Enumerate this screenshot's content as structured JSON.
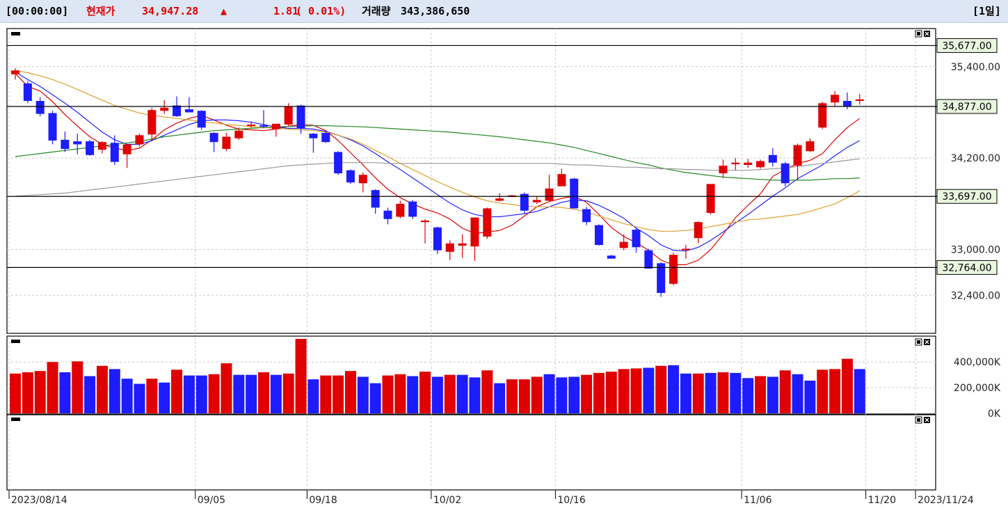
{
  "header": {
    "time": "[00:00:00]",
    "price_label": "현재가",
    "price": "34,947.28",
    "direction_symbol": "▲",
    "change": "1.81",
    "change_pct": "( 0.01%)",
    "volume_label": "거래량",
    "volume": "343,386,650",
    "period": "[1일]",
    "colors": {
      "up": "#e00000",
      "down": "#1c1cff",
      "text": "#000000"
    }
  },
  "panels": {
    "price": {
      "buttons": [
        "maximize-icon",
        "close-icon"
      ]
    },
    "volume": {
      "buttons": [
        "maximize-icon",
        "close-icon"
      ]
    },
    "empty": {
      "buttons": [
        "maximize-icon",
        "close-icon"
      ]
    }
  },
  "chart_data": {
    "type": "candlestick",
    "price_axis": {
      "ticks": [
        "35,400.00",
        "34,200.00",
        "33,000.00",
        "32,400.00"
      ],
      "tick_values": [
        35400,
        34200,
        33000,
        32400
      ],
      "ylim": [
        31900,
        35900
      ]
    },
    "levels": [
      {
        "label": "35,677.00",
        "value": 35677
      },
      {
        "label": "34,877.00",
        "value": 34877
      },
      {
        "label": "33,697.00",
        "value": 33697
      },
      {
        "label": "32,764.00",
        "value": 32764
      }
    ],
    "volume_axis": {
      "ticks": [
        "400,000K",
        "200,000K",
        "0K"
      ],
      "tick_values": [
        400000,
        200000,
        0
      ],
      "ylim": [
        0,
        580000
      ]
    },
    "date_ticks": [
      {
        "label": "2023/08/14",
        "index": 0
      },
      {
        "label": "09/05",
        "index": 15
      },
      {
        "label": "09/18",
        "index": 24
      },
      {
        "label": "10/02",
        "index": 34
      },
      {
        "label": "10/16",
        "index": 44
      },
      {
        "label": "11/06",
        "index": 59
      },
      {
        "label": "11/20",
        "index": 69
      },
      {
        "label": "2023/11/24",
        "index": 73
      }
    ],
    "candles": [
      [
        35300,
        35380,
        35230,
        35350
      ],
      [
        35180,
        35210,
        34920,
        34950
      ],
      [
        34950,
        35000,
        34750,
        34780
      ],
      [
        34790,
        34820,
        34380,
        34430
      ],
      [
        34440,
        34550,
        34280,
        34320
      ],
      [
        34420,
        34520,
        34250,
        34380
      ],
      [
        34420,
        34440,
        34230,
        34240
      ],
      [
        34310,
        34420,
        34260,
        34410
      ],
      [
        34400,
        34500,
        34110,
        34150
      ],
      [
        34250,
        34370,
        34070,
        34380
      ],
      [
        34380,
        34520,
        34350,
        34500
      ],
      [
        34510,
        34860,
        34430,
        34830
      ],
      [
        34820,
        34960,
        34780,
        34860
      ],
      [
        34890,
        35010,
        34740,
        34750
      ],
      [
        34840,
        35000,
        34800,
        34800
      ],
      [
        34820,
        34830,
        34570,
        34600
      ],
      [
        34530,
        34540,
        34280,
        34410
      ],
      [
        34320,
        34530,
        34290,
        34480
      ],
      [
        34460,
        34600,
        34440,
        34560
      ],
      [
        34620,
        34680,
        34600,
        34640
      ],
      [
        34630,
        34830,
        34590,
        34620
      ],
      [
        34580,
        34620,
        34480,
        34650
      ],
      [
        34640,
        34920,
        34620,
        34880
      ],
      [
        34890,
        34900,
        34520,
        34590
      ],
      [
        34520,
        34530,
        34270,
        34460
      ],
      [
        34530,
        34550,
        34400,
        34410
      ],
      [
        34280,
        34290,
        33980,
        34000
      ],
      [
        34040,
        34050,
        33860,
        33880
      ],
      [
        33870,
        34010,
        33750,
        33980
      ],
      [
        33780,
        33790,
        33470,
        33550
      ],
      [
        33510,
        33550,
        33330,
        33400
      ],
      [
        33430,
        33640,
        33410,
        33600
      ],
      [
        33630,
        33650,
        33400,
        33430
      ],
      [
        33360,
        33400,
        33080,
        33380
      ],
      [
        33290,
        33300,
        32940,
        32990
      ],
      [
        32970,
        33120,
        32860,
        33080
      ],
      [
        33050,
        33200,
        32890,
        33080
      ],
      [
        33040,
        33410,
        32850,
        33420
      ],
      [
        33170,
        33550,
        33140,
        33540
      ],
      [
        33640,
        33740,
        33630,
        33670
      ],
      [
        33690,
        33720,
        33690,
        33710
      ],
      [
        33730,
        33750,
        33470,
        33510
      ],
      [
        33620,
        33690,
        33600,
        33650
      ],
      [
        33640,
        33980,
        33630,
        33800
      ],
      [
        33830,
        34060,
        33830,
        33990
      ],
      [
        33930,
        33940,
        33540,
        33540
      ],
      [
        33530,
        33560,
        33320,
        33360
      ],
      [
        33320,
        33330,
        33050,
        33060
      ],
      [
        32920,
        32930,
        32880,
        32880
      ],
      [
        33020,
        33200,
        32990,
        33100
      ],
      [
        33260,
        33290,
        32960,
        33030
      ],
      [
        32990,
        33010,
        32750,
        32750
      ],
      [
        32820,
        32830,
        32380,
        32430
      ],
      [
        32550,
        32960,
        32530,
        32930
      ],
      [
        33000,
        33060,
        32880,
        33010
      ],
      [
        33150,
        33370,
        33080,
        33360
      ],
      [
        33480,
        33850,
        33460,
        33860
      ],
      [
        34000,
        34180,
        33940,
        34100
      ],
      [
        34120,
        34200,
        34040,
        34140
      ],
      [
        34110,
        34190,
        34070,
        34140
      ],
      [
        34080,
        34180,
        34060,
        34160
      ],
      [
        34240,
        34330,
        34090,
        34140
      ],
      [
        34130,
        34150,
        33830,
        33870
      ],
      [
        34100,
        34390,
        33910,
        34370
      ],
      [
        34290,
        34460,
        34280,
        34420
      ],
      [
        34600,
        34940,
        34580,
        34920
      ],
      [
        34930,
        35080,
        34880,
        35030
      ],
      [
        34950,
        35060,
        34840,
        34880
      ],
      [
        34950,
        35040,
        34900,
        34970
      ]
    ],
    "moving_averages": [
      {
        "name": "MA5",
        "color": "#e00000",
        "values": [
          35310,
          35140,
          35080,
          34940,
          34770,
          34620,
          34480,
          34380,
          34330,
          34300,
          34330,
          34440,
          34570,
          34660,
          34720,
          34760,
          34700,
          34630,
          34580,
          34570,
          34560,
          34580,
          34620,
          34640,
          34630,
          34560,
          34430,
          34270,
          34110,
          33940,
          33790,
          33680,
          33600,
          33530,
          33480,
          33400,
          33280,
          33210,
          33230,
          33250,
          33320,
          33440,
          33560,
          33630,
          33670,
          33700,
          33620,
          33460,
          33290,
          33170,
          33090,
          32990,
          32860,
          32800,
          32800,
          32860,
          33000,
          33200,
          33420,
          33580,
          33730,
          33960,
          34050,
          34130,
          34170,
          34260,
          34440,
          34600,
          34720
        ]
      },
      {
        "name": "MA10",
        "color": "#2222ff",
        "values": [
          35330,
          35230,
          35140,
          35030,
          34920,
          34800,
          34670,
          34540,
          34440,
          34380,
          34380,
          34430,
          34500,
          34570,
          34640,
          34690,
          34700,
          34700,
          34690,
          34670,
          34640,
          34610,
          34590,
          34590,
          34580,
          34550,
          34500,
          34440,
          34360,
          34260,
          34150,
          34050,
          33940,
          33830,
          33720,
          33610,
          33520,
          33460,
          33430,
          33430,
          33450,
          33470,
          33500,
          33560,
          33620,
          33650,
          33640,
          33580,
          33500,
          33410,
          33280,
          33180,
          33060,
          32990,
          32980,
          33030,
          33120,
          33230,
          33350,
          33460,
          33580,
          33700,
          33810,
          33930,
          34020,
          34110,
          34230,
          34340,
          34430
        ]
      },
      {
        "name": "MA20",
        "color": "#e0a030",
        "values": [
          35350,
          35320,
          35280,
          35230,
          35170,
          35100,
          35030,
          34960,
          34890,
          34840,
          34790,
          34760,
          34740,
          34720,
          34700,
          34680,
          34660,
          34640,
          34630,
          34610,
          34600,
          34590,
          34580,
          34570,
          34560,
          34540,
          34500,
          34450,
          34380,
          34300,
          34220,
          34130,
          34050,
          33970,
          33890,
          33820,
          33750,
          33690,
          33640,
          33610,
          33590,
          33570,
          33560,
          33560,
          33550,
          33530,
          33490,
          33440,
          33390,
          33340,
          33300,
          33260,
          33240,
          33240,
          33250,
          33270,
          33300,
          33330,
          33360,
          33390,
          33400,
          33420,
          33440,
          33460,
          33500,
          33550,
          33600,
          33680,
          33770
        ]
      },
      {
        "name": "MA60",
        "color": "#228822",
        "values": [
          34220,
          34240,
          34260,
          34280,
          34300,
          34320,
          34340,
          34360,
          34380,
          34400,
          34420,
          34450,
          34480,
          34500,
          34520,
          34540,
          34560,
          34570,
          34580,
          34590,
          34600,
          34610,
          34615,
          34620,
          34625,
          34625,
          34620,
          34615,
          34610,
          34600,
          34590,
          34580,
          34570,
          34560,
          34550,
          34540,
          34525,
          34510,
          34495,
          34480,
          34460,
          34440,
          34420,
          34400,
          34370,
          34340,
          34300,
          34260,
          34220,
          34180,
          34140,
          34110,
          34070,
          34040,
          34010,
          33990,
          33970,
          33950,
          33940,
          33930,
          33920,
          33910,
          33910,
          33910,
          33910,
          33920,
          33930,
          33930,
          33940
        ]
      },
      {
        "name": "MA120",
        "color": "#999999",
        "values": [
          33700,
          33710,
          33720,
          33730,
          33740,
          33760,
          33780,
          33800,
          33820,
          33840,
          33860,
          33880,
          33900,
          33920,
          33940,
          33960,
          33980,
          34000,
          34020,
          34040,
          34060,
          34080,
          34100,
          34110,
          34120,
          34130,
          34140,
          34140,
          34140,
          34140,
          34130,
          34130,
          34130,
          34130,
          34130,
          34130,
          34130,
          34130,
          34130,
          34130,
          34130,
          34130,
          34130,
          34130,
          34120,
          34110,
          34110,
          34100,
          34090,
          34080,
          34080,
          34070,
          34060,
          34060,
          34050,
          34050,
          34040,
          34040,
          34040,
          34040,
          34050,
          34060,
          34070,
          34090,
          34110,
          34130,
          34150,
          34170,
          34190
        ]
      }
    ],
    "volumes": [
      [
        310000,
        "up"
      ],
      [
        320000,
        "up"
      ],
      [
        330000,
        "up"
      ],
      [
        400000,
        "up"
      ],
      [
        320000,
        "down"
      ],
      [
        405000,
        "up"
      ],
      [
        290000,
        "down"
      ],
      [
        370000,
        "up"
      ],
      [
        345000,
        "down"
      ],
      [
        270000,
        "down"
      ],
      [
        230000,
        "down"
      ],
      [
        270000,
        "up"
      ],
      [
        240000,
        "down"
      ],
      [
        340000,
        "up"
      ],
      [
        295000,
        "down"
      ],
      [
        295000,
        "down"
      ],
      [
        305000,
        "up"
      ],
      [
        390000,
        "up"
      ],
      [
        300000,
        "down"
      ],
      [
        300000,
        "down"
      ],
      [
        320000,
        "up"
      ],
      [
        300000,
        "down"
      ],
      [
        310000,
        "up"
      ],
      [
        580000,
        "up"
      ],
      [
        265000,
        "down"
      ],
      [
        295000,
        "up"
      ],
      [
        295000,
        "up"
      ],
      [
        330000,
        "up"
      ],
      [
        285000,
        "down"
      ],
      [
        235000,
        "down"
      ],
      [
        295000,
        "up"
      ],
      [
        305000,
        "up"
      ],
      [
        290000,
        "down"
      ],
      [
        325000,
        "up"
      ],
      [
        285000,
        "down"
      ],
      [
        300000,
        "up"
      ],
      [
        300000,
        "down"
      ],
      [
        280000,
        "down"
      ],
      [
        335000,
        "up"
      ],
      [
        235000,
        "down"
      ],
      [
        265000,
        "up"
      ],
      [
        265000,
        "up"
      ],
      [
        285000,
        "up"
      ],
      [
        305000,
        "down"
      ],
      [
        280000,
        "down"
      ],
      [
        285000,
        "down"
      ],
      [
        300000,
        "up"
      ],
      [
        315000,
        "up"
      ],
      [
        325000,
        "up"
      ],
      [
        345000,
        "up"
      ],
      [
        350000,
        "up"
      ],
      [
        355000,
        "down"
      ],
      [
        370000,
        "up"
      ],
      [
        375000,
        "down"
      ],
      [
        310000,
        "down"
      ],
      [
        310000,
        "up"
      ],
      [
        315000,
        "down"
      ],
      [
        320000,
        "up"
      ],
      [
        315000,
        "down"
      ],
      [
        275000,
        "down"
      ],
      [
        290000,
        "up"
      ],
      [
        285000,
        "down"
      ],
      [
        335000,
        "up"
      ],
      [
        305000,
        "down"
      ],
      [
        255000,
        "down"
      ],
      [
        340000,
        "up"
      ],
      [
        345000,
        "up"
      ],
      [
        425000,
        "up"
      ],
      [
        345000,
        "down"
      ]
    ]
  }
}
